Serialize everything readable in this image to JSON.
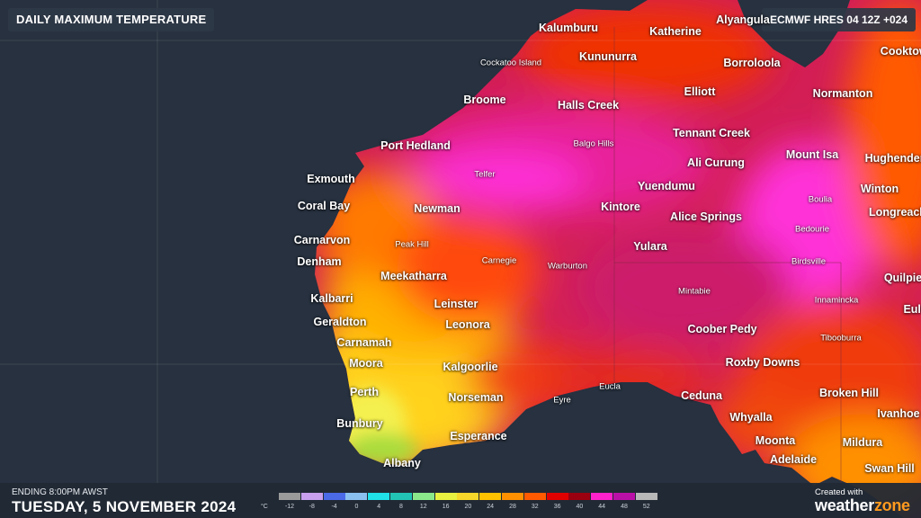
{
  "header": {
    "title": "DAILY MAXIMUM TEMPERATURE",
    "model_run": "ECMWF HRES 04 12Z +024"
  },
  "footer": {
    "ending_label": "ENDING 8:00PM AWST",
    "date": "TUESDAY, 5 NOVEMBER 2024",
    "created_with": "Created with",
    "brand_main": "weather",
    "brand_accent": "zone"
  },
  "legend": {
    "unit": "°C",
    "labels": [
      "-12",
      "-8",
      "-4",
      "0",
      "4",
      "8",
      "12",
      "16",
      "20",
      "24",
      "28",
      "32",
      "36",
      "40",
      "44",
      "48",
      "52"
    ],
    "colors": [
      "#9a9a9a",
      "#c8a0ee",
      "#4a6ae8",
      "#8ac0f0",
      "#20e0e8",
      "#22c4b6",
      "#8ae88a",
      "#e8f040",
      "#f7d72a",
      "#ffc200",
      "#ff9000",
      "#ff5a00",
      "#e00000",
      "#9a0010",
      "#ff22cc",
      "#bb10a8",
      "#b8b8b8"
    ]
  },
  "places": [
    {
      "name": "Kalumburu",
      "size": "big"
    },
    {
      "name": "Katherine",
      "size": "big"
    },
    {
      "name": "Alyangula",
      "size": "big"
    },
    {
      "name": "Cooktown",
      "size": "big"
    },
    {
      "name": "Cockatoo Island",
      "size": "small"
    },
    {
      "name": "Kununurra",
      "size": "big"
    },
    {
      "name": "Borroloola",
      "size": "big"
    },
    {
      "name": "Broome",
      "size": "big"
    },
    {
      "name": "Elliott",
      "size": "big"
    },
    {
      "name": "Normanton",
      "size": "big"
    },
    {
      "name": "Halls Creek",
      "size": "big"
    },
    {
      "name": "Tennant Creek",
      "size": "big"
    },
    {
      "name": "Port Hedland",
      "size": "big"
    },
    {
      "name": "Balgo Hills",
      "size": "small"
    },
    {
      "name": "Mount Isa",
      "size": "big"
    },
    {
      "name": "Hughenden",
      "size": "big"
    },
    {
      "name": "Ali Curung",
      "size": "big"
    },
    {
      "name": "Exmouth",
      "size": "big"
    },
    {
      "name": "Telfer",
      "size": "small"
    },
    {
      "name": "Yuendumu",
      "size": "big"
    },
    {
      "name": "Winton",
      "size": "big"
    },
    {
      "name": "Coral Bay",
      "size": "big"
    },
    {
      "name": "Newman",
      "size": "big"
    },
    {
      "name": "Kintore",
      "size": "big"
    },
    {
      "name": "Boulia",
      "size": "small"
    },
    {
      "name": "Longreach",
      "size": "big"
    },
    {
      "name": "Alice Springs",
      "size": "big"
    },
    {
      "name": "Bedourie",
      "size": "small"
    },
    {
      "name": "Carnarvon",
      "size": "big"
    },
    {
      "name": "Peak Hill",
      "size": "small"
    },
    {
      "name": "Yulara",
      "size": "big"
    },
    {
      "name": "Denham",
      "size": "big"
    },
    {
      "name": "Carnegie",
      "size": "small"
    },
    {
      "name": "Birdsville",
      "size": "small"
    },
    {
      "name": "Warburton",
      "size": "small"
    },
    {
      "name": "Meekatharra",
      "size": "big"
    },
    {
      "name": "Quilpie",
      "size": "big"
    },
    {
      "name": "Mintabie",
      "size": "small"
    },
    {
      "name": "Kalbarri",
      "size": "big"
    },
    {
      "name": "Innamincka",
      "size": "small"
    },
    {
      "name": "Leinster",
      "size": "big"
    },
    {
      "name": "Eulo",
      "size": "big"
    },
    {
      "name": "Geraldton",
      "size": "big"
    },
    {
      "name": "Leonora",
      "size": "big"
    },
    {
      "name": "Coober Pedy",
      "size": "big"
    },
    {
      "name": "Carnamah",
      "size": "big"
    },
    {
      "name": "Tibooburra",
      "size": "small"
    },
    {
      "name": "Moora",
      "size": "big"
    },
    {
      "name": "Roxby Downs",
      "size": "big"
    },
    {
      "name": "Kalgoorlie",
      "size": "big"
    },
    {
      "name": "Perth",
      "size": "big"
    },
    {
      "name": "Eucla",
      "size": "small"
    },
    {
      "name": "Broken Hill",
      "size": "big"
    },
    {
      "name": "Norseman",
      "size": "big"
    },
    {
      "name": "Eyre",
      "size": "small"
    },
    {
      "name": "Ceduna",
      "size": "big"
    },
    {
      "name": "Ivanhoe",
      "size": "big"
    },
    {
      "name": "Whyalla",
      "size": "big"
    },
    {
      "name": "Bunbury",
      "size": "big"
    },
    {
      "name": "Esperance",
      "size": "big"
    },
    {
      "name": "Moonta",
      "size": "big"
    },
    {
      "name": "Mildura",
      "size": "big"
    },
    {
      "name": "Adelaide",
      "size": "big"
    },
    {
      "name": "Swan Hill",
      "size": "big"
    },
    {
      "name": "Albany",
      "size": "big"
    }
  ]
}
